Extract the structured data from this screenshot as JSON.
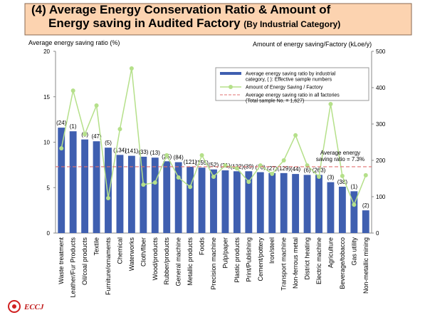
{
  "chart_data": {
    "type": "bar",
    "title": "(4) Average Energy Conservation Ratio & Amount of",
    "title_line2": "Energy saving in Audited Factory",
    "subtitle": "(By Industrial Category)",
    "y_label": "Average energy saving ratio (%)",
    "y2_label": "Amount of energy saving/Factory (kLoe/y)",
    "categories": [
      "Waste treatment",
      "Leather/Fur Products",
      "Oil/coal products",
      "Textile",
      "Furniture/ornaments",
      "Chemical",
      "Waterworks",
      "Cloth/fiber",
      "Wood/products",
      "Rubber/products",
      "General machine",
      "Metallic products",
      "Foods",
      "Precision machine",
      "Pulp/paper",
      "Plastic products",
      "Print/Publishing",
      "Cement/pottery",
      "Iron/steel",
      "Transport machine",
      "Non-ferrous metal",
      "District heating",
      "Electric machine",
      "Agriculture",
      "Beverage/tobacco",
      "Gas utility",
      "Non-metallic mining"
    ],
    "series": [
      {
        "name": "Average energy saving ratio by industrial category, ( ): Effective sample numbers",
        "type": "bar",
        "color": "#3f5fb0",
        "values": [
          11.6,
          11.2,
          10.3,
          10.1,
          9.4,
          8.6,
          8.5,
          8.4,
          8.3,
          7.9,
          7.8,
          7.3,
          7.2,
          7.0,
          6.9,
          6.8,
          6.8,
          6.7,
          6.6,
          6.6,
          6.5,
          6.4,
          6.4,
          5.6,
          5.1,
          4.6,
          2.5
        ],
        "sample_labels": [
          "(24)",
          "(1)",
          "(8)",
          "(47)",
          "(5)",
          "(134)",
          "(141)",
          "(33)",
          "(13)",
          "(25)",
          "(84)",
          "(121)",
          "(155)",
          "(52)",
          "(31)",
          "(132)",
          "(39)",
          "(70)",
          "(27)",
          "(129)",
          "(44)",
          "(6)",
          "(263)",
          "(3)",
          "(38)",
          "(1)",
          "(2)"
        ]
      },
      {
        "name": "Amount of Energy Saving / Factory",
        "type": "line",
        "axis": "y2",
        "color": "#b5e08a",
        "values": [
          233,
          392,
          272,
          351,
          96,
          286,
          453,
          133,
          139,
          214,
          153,
          127,
          214,
          155,
          186,
          178,
          141,
          186,
          163,
          200,
          269,
          186,
          155,
          355,
          157,
          78,
          159
        ]
      }
    ],
    "reference": {
      "value": 7.3,
      "color": "#e07070",
      "name": "Average energy saving ratio in all factories (Total sample No. = 1,627)",
      "annotation": [
        "Average energy",
        "saving ratio = 7.3%"
      ]
    },
    "ylim": [
      0,
      20
    ],
    "yticks": [
      0,
      5,
      10,
      15,
      20
    ],
    "y2lim": [
      0,
      500
    ],
    "y2ticks": [
      0,
      100,
      200,
      300,
      400,
      500
    ]
  },
  "logo": "ECCJ"
}
